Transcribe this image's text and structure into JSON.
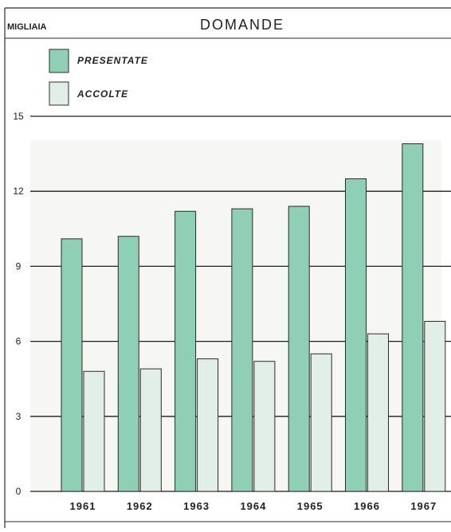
{
  "colors": {
    "presentate": "#8fcfb6",
    "accolte": "#e2efe9",
    "stroke": "#2b2b2b",
    "gridline": "#1e1e1e"
  },
  "chart_data": {
    "type": "bar",
    "title": "DOMANDE",
    "ylabel": "MIGLIAIA",
    "xlabel": "",
    "categories": [
      "1961",
      "1962",
      "1963",
      "1964",
      "1965",
      "1966",
      "1967"
    ],
    "ylim": [
      0,
      15
    ],
    "yticks": [
      "0",
      "3",
      "6",
      "9",
      "12",
      "15"
    ],
    "grid": true,
    "legend_position": "top-left",
    "series": [
      {
        "name": "PRESENTATE",
        "color_key": "presentate",
        "values": [
          10.1,
          10.2,
          11.2,
          11.3,
          11.4,
          12.5,
          13.9
        ]
      },
      {
        "name": "ACCOLTE",
        "color_key": "accolte",
        "values": [
          4.8,
          4.9,
          5.3,
          5.2,
          5.5,
          6.3,
          6.8
        ]
      }
    ]
  }
}
